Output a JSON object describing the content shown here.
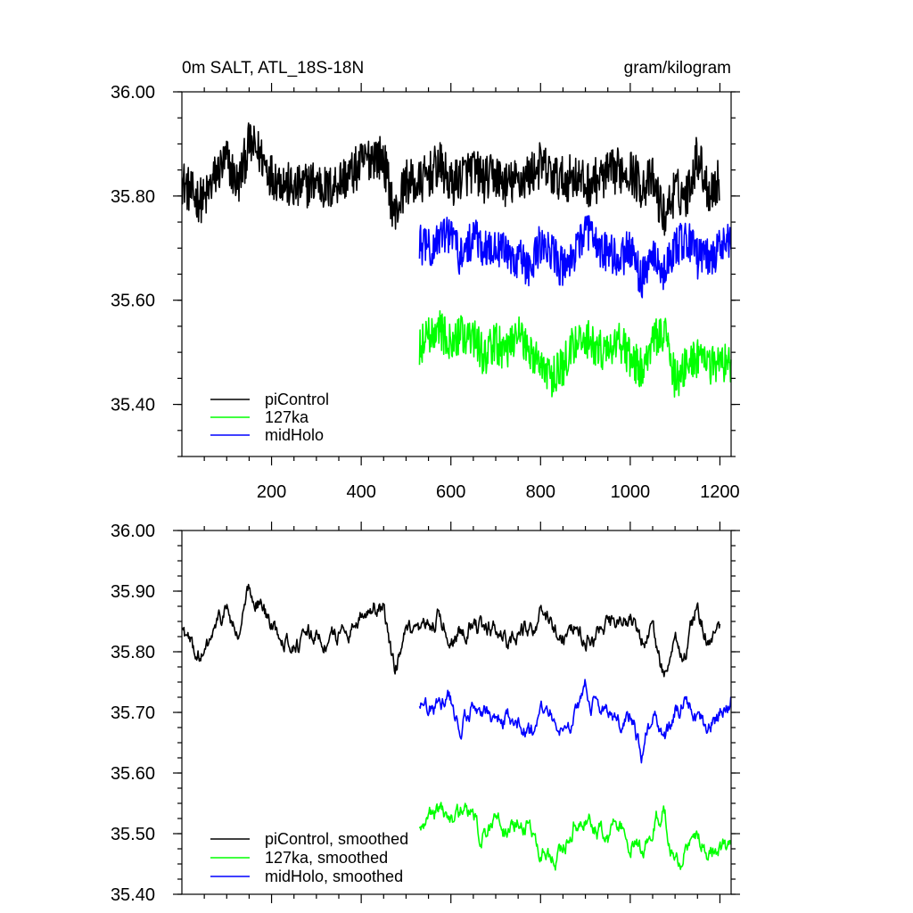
{
  "chart_data": [
    {
      "type": "line",
      "title_left": "0m SALT, ATL_18S-18N",
      "title_right": "gram/kilogram",
      "xlabel": "",
      "ylabel": "",
      "xlim": [
        0,
        1225
      ],
      "ylim": [
        35.3,
        36.0
      ],
      "xticks": [
        200,
        400,
        600,
        800,
        1000,
        1200
      ],
      "xtick_labels": [
        "200",
        "400",
        "600",
        "800",
        "1000",
        "1200"
      ],
      "yticks": [
        35.4,
        35.6,
        35.8,
        36.0
      ],
      "ytick_labels": [
        "35.40",
        "35.60",
        "35.80",
        "36.00"
      ],
      "legend_position": "bottom-left",
      "series": [
        {
          "name": "piControl",
          "color": "#000000",
          "noise": 0.045,
          "x": [
            0,
            25,
            50,
            75,
            100,
            125,
            150,
            175,
            200,
            225,
            250,
            275,
            300,
            325,
            350,
            375,
            400,
            425,
            450,
            475,
            500,
            525,
            550,
            575,
            600,
            625,
            650,
            675,
            700,
            725,
            750,
            775,
            800,
            825,
            850,
            875,
            900,
            925,
            950,
            975,
            1000,
            1025,
            1050,
            1075,
            1100,
            1125,
            1150,
            1175,
            1200
          ],
          "values": [
            35.83,
            35.8,
            35.79,
            35.84,
            35.87,
            35.82,
            35.9,
            35.88,
            35.84,
            35.83,
            35.81,
            35.82,
            35.83,
            35.81,
            35.83,
            35.84,
            35.86,
            35.88,
            35.87,
            35.76,
            35.83,
            35.82,
            35.84,
            35.86,
            35.82,
            35.84,
            35.85,
            35.83,
            35.84,
            35.82,
            35.83,
            35.84,
            35.86,
            35.84,
            35.83,
            35.84,
            35.82,
            35.83,
            35.84,
            35.85,
            35.85,
            35.82,
            35.83,
            35.76,
            35.81,
            35.8,
            35.88,
            35.81,
            35.83
          ]
        },
        {
          "name": "127ka",
          "color": "#00ff00",
          "noise": 0.04,
          "x": [
            530,
            550,
            575,
            600,
            625,
            650,
            675,
            700,
            725,
            750,
            775,
            800,
            825,
            850,
            875,
            900,
            925,
            950,
            975,
            1000,
            1025,
            1050,
            1075,
            1100,
            1125,
            1150,
            1175,
            1200,
            1225
          ],
          "values": [
            35.51,
            35.53,
            35.54,
            35.52,
            35.54,
            35.53,
            35.49,
            35.52,
            35.5,
            35.53,
            35.51,
            35.47,
            35.45,
            35.47,
            35.52,
            35.53,
            35.51,
            35.49,
            35.52,
            35.49,
            35.47,
            35.52,
            35.54,
            35.45,
            35.47,
            35.49,
            35.47,
            35.48,
            35.47
          ]
        },
        {
          "name": "midHolo",
          "color": "#0000ff",
          "noise": 0.04,
          "x": [
            530,
            550,
            575,
            600,
            625,
            650,
            675,
            700,
            725,
            750,
            775,
            800,
            825,
            850,
            875,
            900,
            925,
            950,
            975,
            1000,
            1025,
            1050,
            1075,
            1100,
            1125,
            1150,
            1175,
            1200,
            1225
          ],
          "values": [
            35.71,
            35.7,
            35.72,
            35.72,
            35.68,
            35.72,
            35.7,
            35.69,
            35.69,
            35.68,
            35.66,
            35.71,
            35.69,
            35.66,
            35.69,
            35.74,
            35.7,
            35.69,
            35.68,
            35.7,
            35.64,
            35.7,
            35.65,
            35.7,
            35.72,
            35.68,
            35.68,
            35.7,
            35.72
          ]
        }
      ]
    },
    {
      "type": "line",
      "xlabel": "",
      "ylabel": "",
      "xlim": [
        0,
        1225
      ],
      "ylim": [
        35.4,
        36.0
      ],
      "xticks": [
        200,
        400,
        600,
        800,
        1000,
        1200
      ],
      "yticks": [
        35.4,
        35.5,
        35.6,
        35.7,
        35.8,
        35.9,
        36.0
      ],
      "ytick_labels": [
        "35.40",
        "35.50",
        "35.60",
        "35.70",
        "35.80",
        "35.90",
        "36.00"
      ],
      "legend_position": "bottom-left",
      "series": [
        {
          "name": "piControl, smoothed",
          "color": "#000000",
          "noise": 0.018,
          "x": [
            0,
            25,
            50,
            75,
            100,
            125,
            150,
            175,
            200,
            225,
            250,
            275,
            300,
            325,
            350,
            375,
            400,
            425,
            450,
            475,
            500,
            525,
            550,
            575,
            600,
            625,
            650,
            675,
            700,
            725,
            750,
            775,
            800,
            825,
            850,
            875,
            900,
            925,
            950,
            975,
            1000,
            1025,
            1050,
            1075,
            1100,
            1125,
            1150,
            1175,
            1200
          ],
          "values": [
            35.84,
            35.8,
            35.79,
            35.84,
            35.87,
            35.82,
            35.9,
            35.88,
            35.84,
            35.83,
            35.81,
            35.82,
            35.83,
            35.81,
            35.83,
            35.84,
            35.86,
            35.88,
            35.87,
            35.76,
            35.83,
            35.82,
            35.84,
            35.86,
            35.82,
            35.84,
            35.85,
            35.83,
            35.84,
            35.82,
            35.83,
            35.84,
            35.86,
            35.84,
            35.83,
            35.84,
            35.82,
            35.83,
            35.84,
            35.85,
            35.85,
            35.82,
            35.83,
            35.76,
            35.81,
            35.8,
            35.88,
            35.81,
            35.83
          ]
        },
        {
          "name": "127ka, smoothed",
          "color": "#00ff00",
          "noise": 0.018,
          "x": [
            530,
            550,
            575,
            600,
            625,
            650,
            675,
            700,
            725,
            750,
            775,
            800,
            825,
            850,
            875,
            900,
            925,
            950,
            975,
            1000,
            1025,
            1050,
            1075,
            1100,
            1125,
            1150,
            1175,
            1200,
            1225
          ],
          "values": [
            35.51,
            35.53,
            35.54,
            35.52,
            35.54,
            35.53,
            35.49,
            35.52,
            35.5,
            35.53,
            35.51,
            35.47,
            35.45,
            35.47,
            35.52,
            35.53,
            35.51,
            35.49,
            35.52,
            35.49,
            35.47,
            35.52,
            35.54,
            35.45,
            35.47,
            35.49,
            35.47,
            35.48,
            35.47
          ]
        },
        {
          "name": "midHolo, smoothed",
          "color": "#0000ff",
          "noise": 0.018,
          "x": [
            530,
            550,
            575,
            600,
            625,
            650,
            675,
            700,
            725,
            750,
            775,
            800,
            825,
            850,
            875,
            900,
            925,
            950,
            975,
            1000,
            1025,
            1050,
            1075,
            1100,
            1125,
            1150,
            1175,
            1200,
            1225
          ],
          "values": [
            35.71,
            35.7,
            35.72,
            35.72,
            35.68,
            35.72,
            35.7,
            35.69,
            35.69,
            35.68,
            35.66,
            35.71,
            35.69,
            35.66,
            35.69,
            35.74,
            35.7,
            35.69,
            35.68,
            35.7,
            35.64,
            35.7,
            35.65,
            35.7,
            35.72,
            35.68,
            35.68,
            35.7,
            35.72
          ]
        }
      ]
    }
  ]
}
